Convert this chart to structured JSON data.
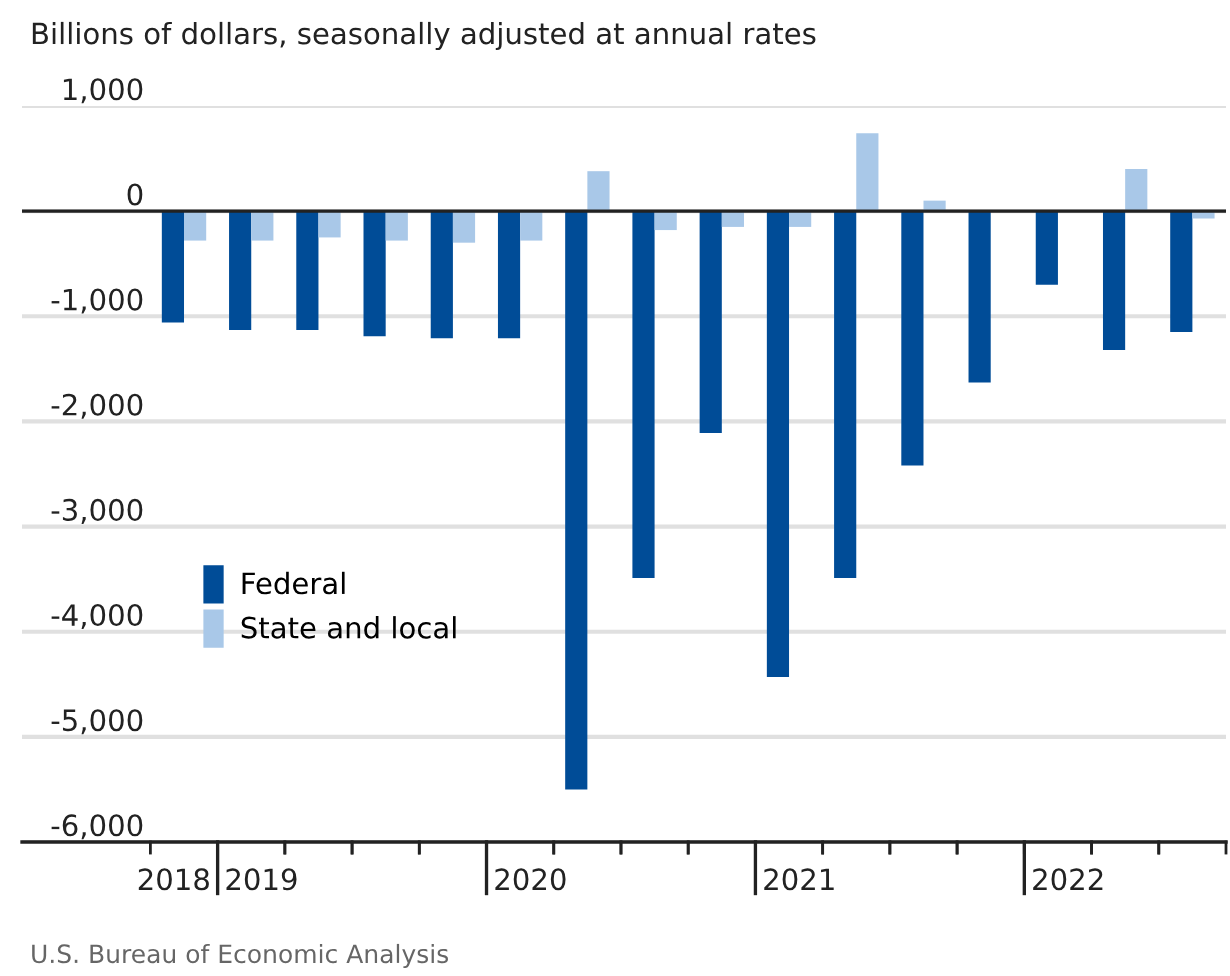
{
  "chart_data": {
    "type": "bar",
    "title": "Billions of dollars, seasonally adjusted at annual rates",
    "categories": [
      "2018",
      "2019",
      null,
      null,
      null,
      "2020",
      null,
      null,
      null,
      "2021",
      null,
      null,
      null,
      "2022",
      null,
      null
    ],
    "series": [
      {
        "name": "Federal",
        "color": "#004c97",
        "values": [
          -1060,
          -1130,
          -1130,
          -1190,
          -1210,
          -1210,
          -5500,
          -3490,
          -2110,
          -4430,
          -3490,
          -2420,
          -1630,
          -700,
          -1320,
          -1150
        ]
      },
      {
        "name": "State and local",
        "color": "#a9c8e8",
        "values": [
          -280,
          -280,
          -250,
          -280,
          -300,
          -280,
          380,
          -180,
          -150,
          -150,
          740,
          100,
          0,
          0,
          400,
          -70
        ]
      }
    ],
    "ylim": [
      -6000,
      1000
    ],
    "yticks": [
      {
        "value": 1000,
        "label": "1,000"
      },
      0,
      {
        "value": -1000,
        "label": "-1,000"
      },
      {
        "value": -2000,
        "label": "-2,000"
      },
      {
        "value": -3000,
        "label": "-3,000"
      },
      {
        "value": -4000,
        "label": "-4,000"
      },
      {
        "value": -5000,
        "label": "-5,000"
      },
      {
        "value": -6000,
        "label": "-6,000"
      }
    ],
    "grid": "y",
    "legend": "center left",
    "annotations": [
      "U.S. Bureau of Economic Analysis"
    ]
  }
}
